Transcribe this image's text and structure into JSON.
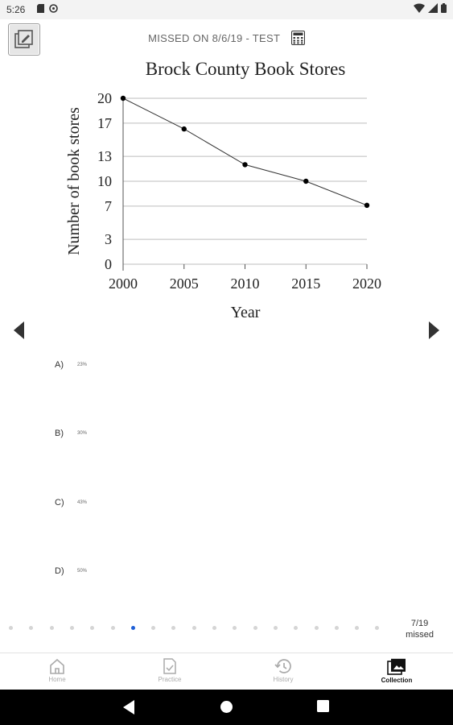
{
  "status_bar": {
    "time": "5:26",
    "left_icons": [
      "sd-card-icon",
      "sync-icon"
    ],
    "right_icons": [
      "wifi-icon",
      "signal-icon",
      "battery-icon"
    ]
  },
  "header": {
    "missed_label": "MISSED ON 8/6/19 - TEST",
    "calculator_icon": "calculator-icon",
    "edit_icon": "edit-icon"
  },
  "chart_data": {
    "type": "line",
    "title": "Brock County Book Stores",
    "xlabel": "Year",
    "ylabel": "Number of book stores",
    "x": [
      2000,
      2005,
      2010,
      2015,
      2020
    ],
    "series": [
      {
        "values": [
          20,
          16.3,
          12,
          10,
          7.1
        ]
      }
    ],
    "x_ticks": [
      "2000",
      "2005",
      "2010",
      "2015",
      "2020"
    ],
    "y_ticks": [
      "0",
      "3",
      "7",
      "10",
      "13",
      "17",
      "20"
    ],
    "ylim": [
      0,
      20
    ],
    "xlim": [
      2000,
      2020
    ],
    "grid": true,
    "series_color": "#333333"
  },
  "choices": [
    {
      "letter": "A)",
      "text": "23%"
    },
    {
      "letter": "B)",
      "text": "30%"
    },
    {
      "letter": "C)",
      "text": "43%"
    },
    {
      "letter": "D)",
      "text": "50%"
    }
  ],
  "pagination": {
    "total_dots": 19,
    "active_index": 6,
    "count": "7/19",
    "status": "missed",
    "active_color": "#1e5fd6"
  },
  "bottom_nav": {
    "items": [
      {
        "label": "Home",
        "icon": "home-icon",
        "active": false
      },
      {
        "label": "Practice",
        "icon": "practice-icon",
        "active": false
      },
      {
        "label": "History",
        "icon": "history-icon",
        "active": false
      },
      {
        "label": "Collection",
        "icon": "collection-icon",
        "active": true
      }
    ]
  }
}
